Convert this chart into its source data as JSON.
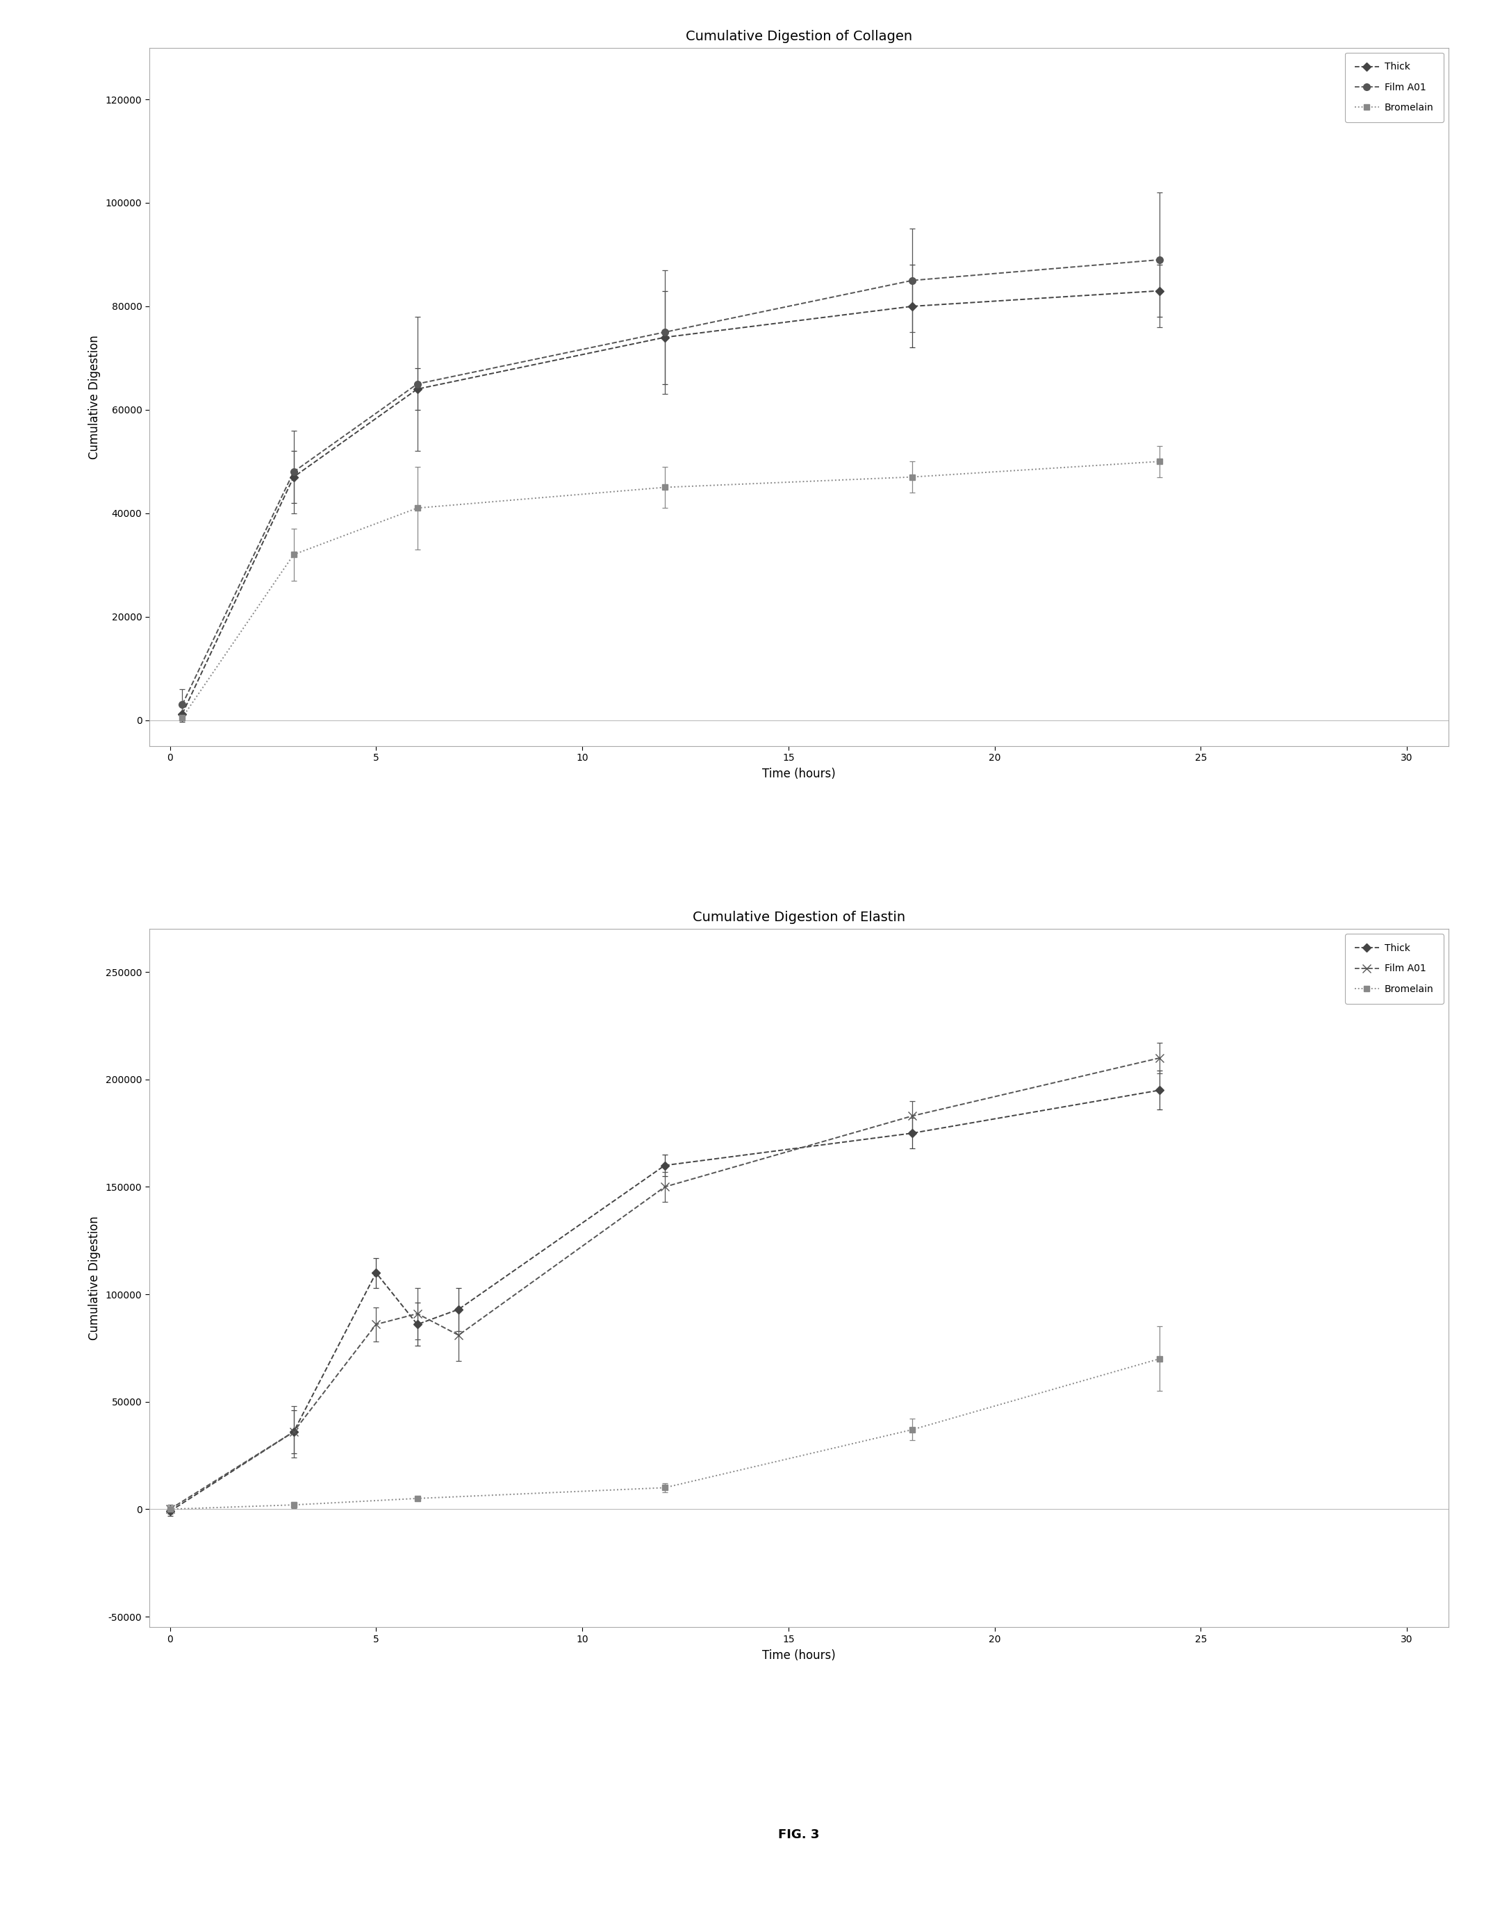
{
  "collagen": {
    "title": "Cumulative Digestion of Collagen",
    "xlabel": "Time (hours)",
    "ylabel": "Cumulative Digestion",
    "xlim": [
      -0.5,
      31
    ],
    "ylim": [
      -5000,
      130000
    ],
    "yticks": [
      0,
      20000,
      40000,
      60000,
      80000,
      100000,
      120000
    ],
    "xticks": [
      0,
      5,
      10,
      15,
      20,
      25,
      30
    ],
    "series": [
      {
        "label": "Thick",
        "x": [
          0.3,
          3,
          6,
          12,
          18,
          24
        ],
        "y": [
          1200,
          47000,
          64000,
          74000,
          80000,
          83000
        ],
        "yerr": [
          1500,
          5000,
          4000,
          9000,
          8000,
          5000
        ],
        "color": "#444444",
        "linestyle": "--",
        "marker": "D",
        "markersize": 6
      },
      {
        "label": "Film A01",
        "x": [
          0.3,
          3,
          6,
          12,
          18,
          24
        ],
        "y": [
          3000,
          48000,
          65000,
          75000,
          85000,
          89000
        ],
        "yerr": [
          3000,
          8000,
          13000,
          12000,
          10000,
          13000
        ],
        "color": "#555555",
        "linestyle": "--",
        "marker": "o",
        "markersize": 7
      },
      {
        "label": "Bromelain",
        "x": [
          0.3,
          3,
          6,
          12,
          18,
          24
        ],
        "y": [
          500,
          32000,
          41000,
          45000,
          47000,
          50000
        ],
        "yerr": [
          500,
          5000,
          8000,
          4000,
          3000,
          3000
        ],
        "color": "#888888",
        "linestyle": ":",
        "marker": "s",
        "markersize": 6
      }
    ]
  },
  "elastin": {
    "title": "Cumulative Digestion of Elastin",
    "xlabel": "Time (hours)",
    "ylabel": "Cumulative Digestion",
    "xlim": [
      -0.5,
      31
    ],
    "ylim": [
      -55000,
      270000
    ],
    "yticks": [
      -50000,
      0,
      50000,
      100000,
      150000,
      200000,
      250000
    ],
    "xticks": [
      0,
      5,
      10,
      15,
      20,
      25,
      30
    ],
    "series": [
      {
        "label": "Thick",
        "x": [
          0,
          3,
          5,
          6,
          7,
          12,
          18,
          24
        ],
        "y": [
          -1000,
          36000,
          110000,
          86000,
          93000,
          160000,
          175000,
          195000
        ],
        "yerr": [
          2000,
          10000,
          7000,
          10000,
          10000,
          5000,
          7000,
          9000
        ],
        "color": "#444444",
        "linestyle": "--",
        "marker": "D",
        "markersize": 6
      },
      {
        "label": "Film A01",
        "x": [
          0,
          3,
          5,
          6,
          7,
          12,
          18,
          24
        ],
        "y": [
          0,
          36000,
          86000,
          91000,
          81000,
          150000,
          183000,
          210000
        ],
        "yerr": [
          2000,
          12000,
          8000,
          12000,
          12000,
          7000,
          7000,
          7000
        ],
        "color": "#555555",
        "linestyle": "--",
        "marker": "x",
        "markersize": 8
      },
      {
        "label": "Bromelain",
        "x": [
          0,
          3,
          6,
          12,
          18,
          24
        ],
        "y": [
          0,
          2000,
          5000,
          10000,
          37000,
          70000
        ],
        "yerr": [
          500,
          1500,
          1000,
          2000,
          5000,
          15000
        ],
        "color": "#888888",
        "linestyle": ":",
        "marker": "s",
        "markersize": 6
      }
    ]
  },
  "fig_label": "FIG. 3",
  "background_color": "#ffffff",
  "title_fontsize": 14,
  "label_fontsize": 12,
  "tick_fontsize": 10,
  "legend_fontsize": 10
}
